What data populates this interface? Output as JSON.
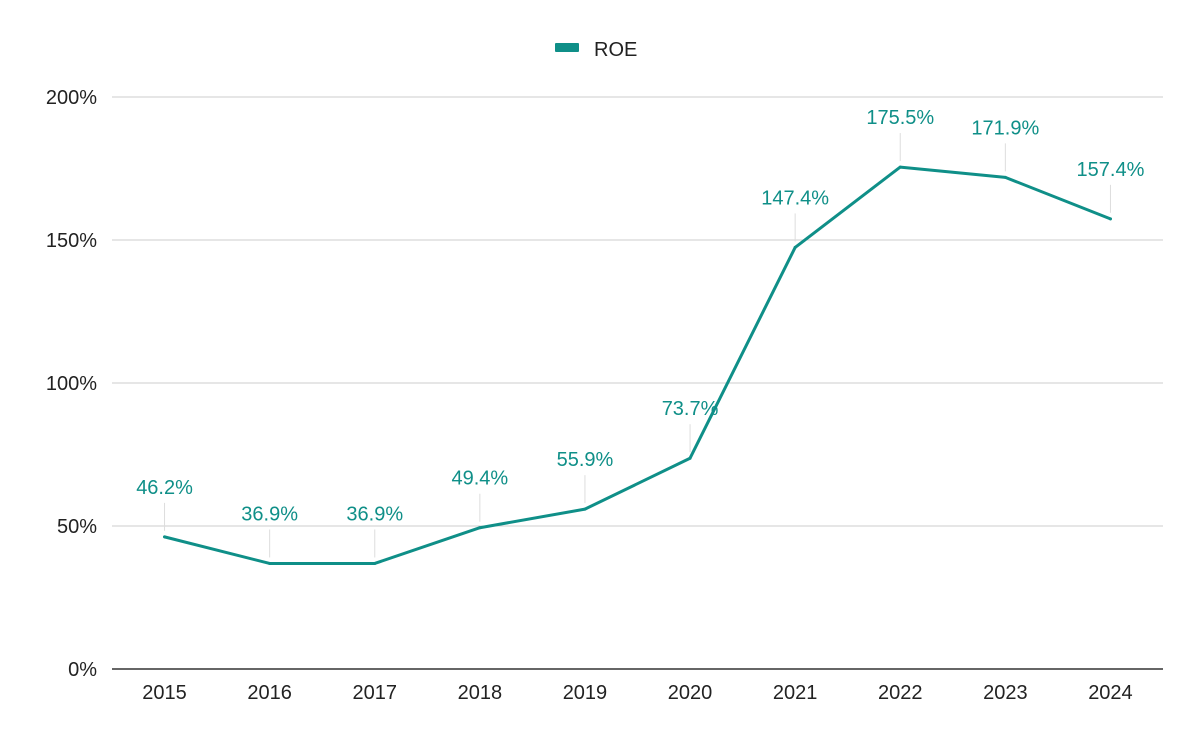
{
  "chart_data": {
    "type": "line",
    "title": "",
    "xlabel": "",
    "ylabel": "",
    "categories": [
      "2015",
      "2016",
      "2017",
      "2018",
      "2019",
      "2020",
      "2021",
      "2022",
      "2023",
      "2024"
    ],
    "series": [
      {
        "name": "ROE",
        "color": "#0f8f88",
        "values": [
          46.2,
          36.9,
          36.9,
          49.4,
          55.9,
          73.7,
          147.4,
          175.5,
          171.9,
          157.4
        ],
        "labels": [
          "46.2%",
          "36.9%",
          "36.9%",
          "49.4%",
          "55.9%",
          "73.7%",
          "147.4%",
          "175.5%",
          "171.9%",
          "157.4%"
        ]
      }
    ],
    "ylim": [
      0,
      200
    ],
    "yticks": [
      0,
      50,
      100,
      150,
      200
    ],
    "ytick_labels": [
      "0%",
      "50%",
      "100%",
      "150%",
      "200%"
    ],
    "grid": true,
    "legend_position": "top-center",
    "colors": {
      "line": "#0f8f88",
      "grid": "#cccccc",
      "axis": "#333333",
      "text": "#222222"
    }
  }
}
